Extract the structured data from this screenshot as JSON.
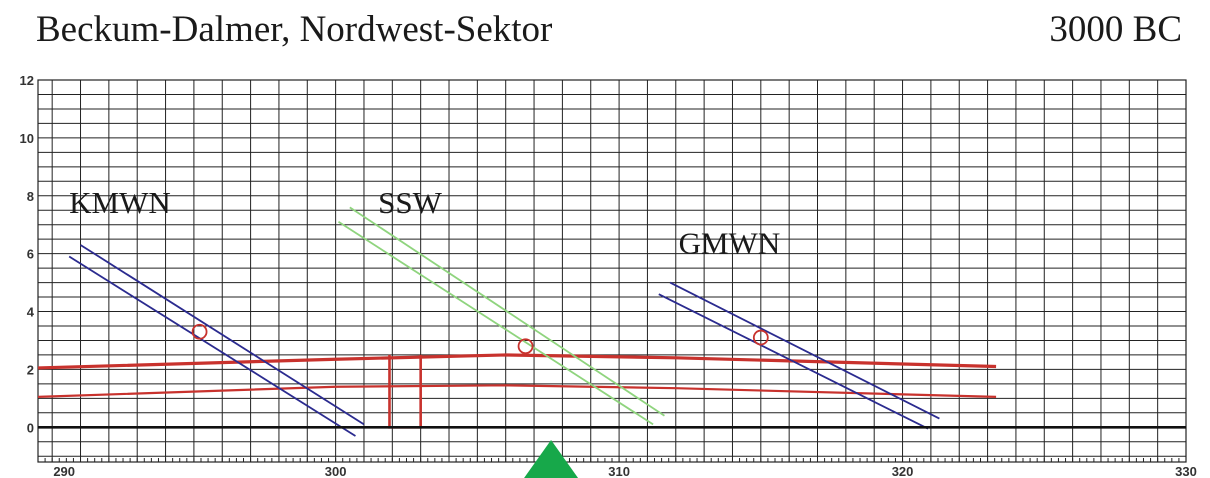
{
  "title": "Beckum-Dalmer, Nordwest-Sektor",
  "era": "3000 BC",
  "chart_data": {
    "type": "line",
    "xlim": [
      289.5,
      330
    ],
    "ylim": [
      -1.2,
      12
    ],
    "x_ticks": [
      290,
      300,
      310,
      320,
      330
    ],
    "y_ticks": [
      0,
      2,
      4,
      6,
      8,
      10,
      12
    ],
    "grid": true,
    "colors": {
      "blue": "#2b2b8f",
      "green": "#8fd47e",
      "red": "#c8322d",
      "marker": "#c8322d",
      "triangle": "#17a84a",
      "zero_line": "#111111",
      "grid": "#222222"
    },
    "series": [
      {
        "label": "KMWN",
        "label_pos": [
          290.6,
          7.4
        ],
        "color": "blue",
        "lines": [
          [
            [
              291.0,
              6.3
            ],
            [
              301.0,
              0.1
            ]
          ],
          [
            [
              290.6,
              5.9
            ],
            [
              300.7,
              -0.3
            ]
          ]
        ],
        "marker": [
          295.2,
          3.3
        ]
      },
      {
        "label": "SSW",
        "label_pos": [
          301.5,
          7.4
        ],
        "color": "green",
        "lines": [
          [
            [
              300.5,
              7.6
            ],
            [
              311.6,
              0.4
            ]
          ],
          [
            [
              300.1,
              7.1
            ],
            [
              311.2,
              0.1
            ]
          ]
        ],
        "marker": [
          306.7,
          2.8
        ]
      },
      {
        "label": "GMWN",
        "label_pos": [
          312.1,
          6.0
        ],
        "color": "blue",
        "lines": [
          [
            [
              311.8,
              5.0
            ],
            [
              321.3,
              0.3
            ]
          ],
          [
            [
              311.4,
              4.6
            ],
            [
              320.9,
              -0.05
            ]
          ]
        ],
        "marker": [
          315.0,
          3.1
        ]
      }
    ],
    "ground": {
      "color": "red",
      "upper": [
        [
          289.5,
          2.05
        ],
        [
          300.0,
          2.35
        ],
        [
          306.0,
          2.5
        ],
        [
          312.0,
          2.4
        ],
        [
          323.3,
          2.1
        ]
      ],
      "lower": [
        [
          289.5,
          1.05
        ],
        [
          300.0,
          1.4
        ],
        [
          306.0,
          1.45
        ],
        [
          312.0,
          1.35
        ],
        [
          323.3,
          1.05
        ]
      ],
      "pit": [
        [
          301.9,
          2.5
        ],
        [
          301.9,
          0.0
        ],
        [
          303.0,
          0.0
        ],
        [
          303.0,
          2.5
        ]
      ]
    },
    "position_marker_x": 307.6
  }
}
